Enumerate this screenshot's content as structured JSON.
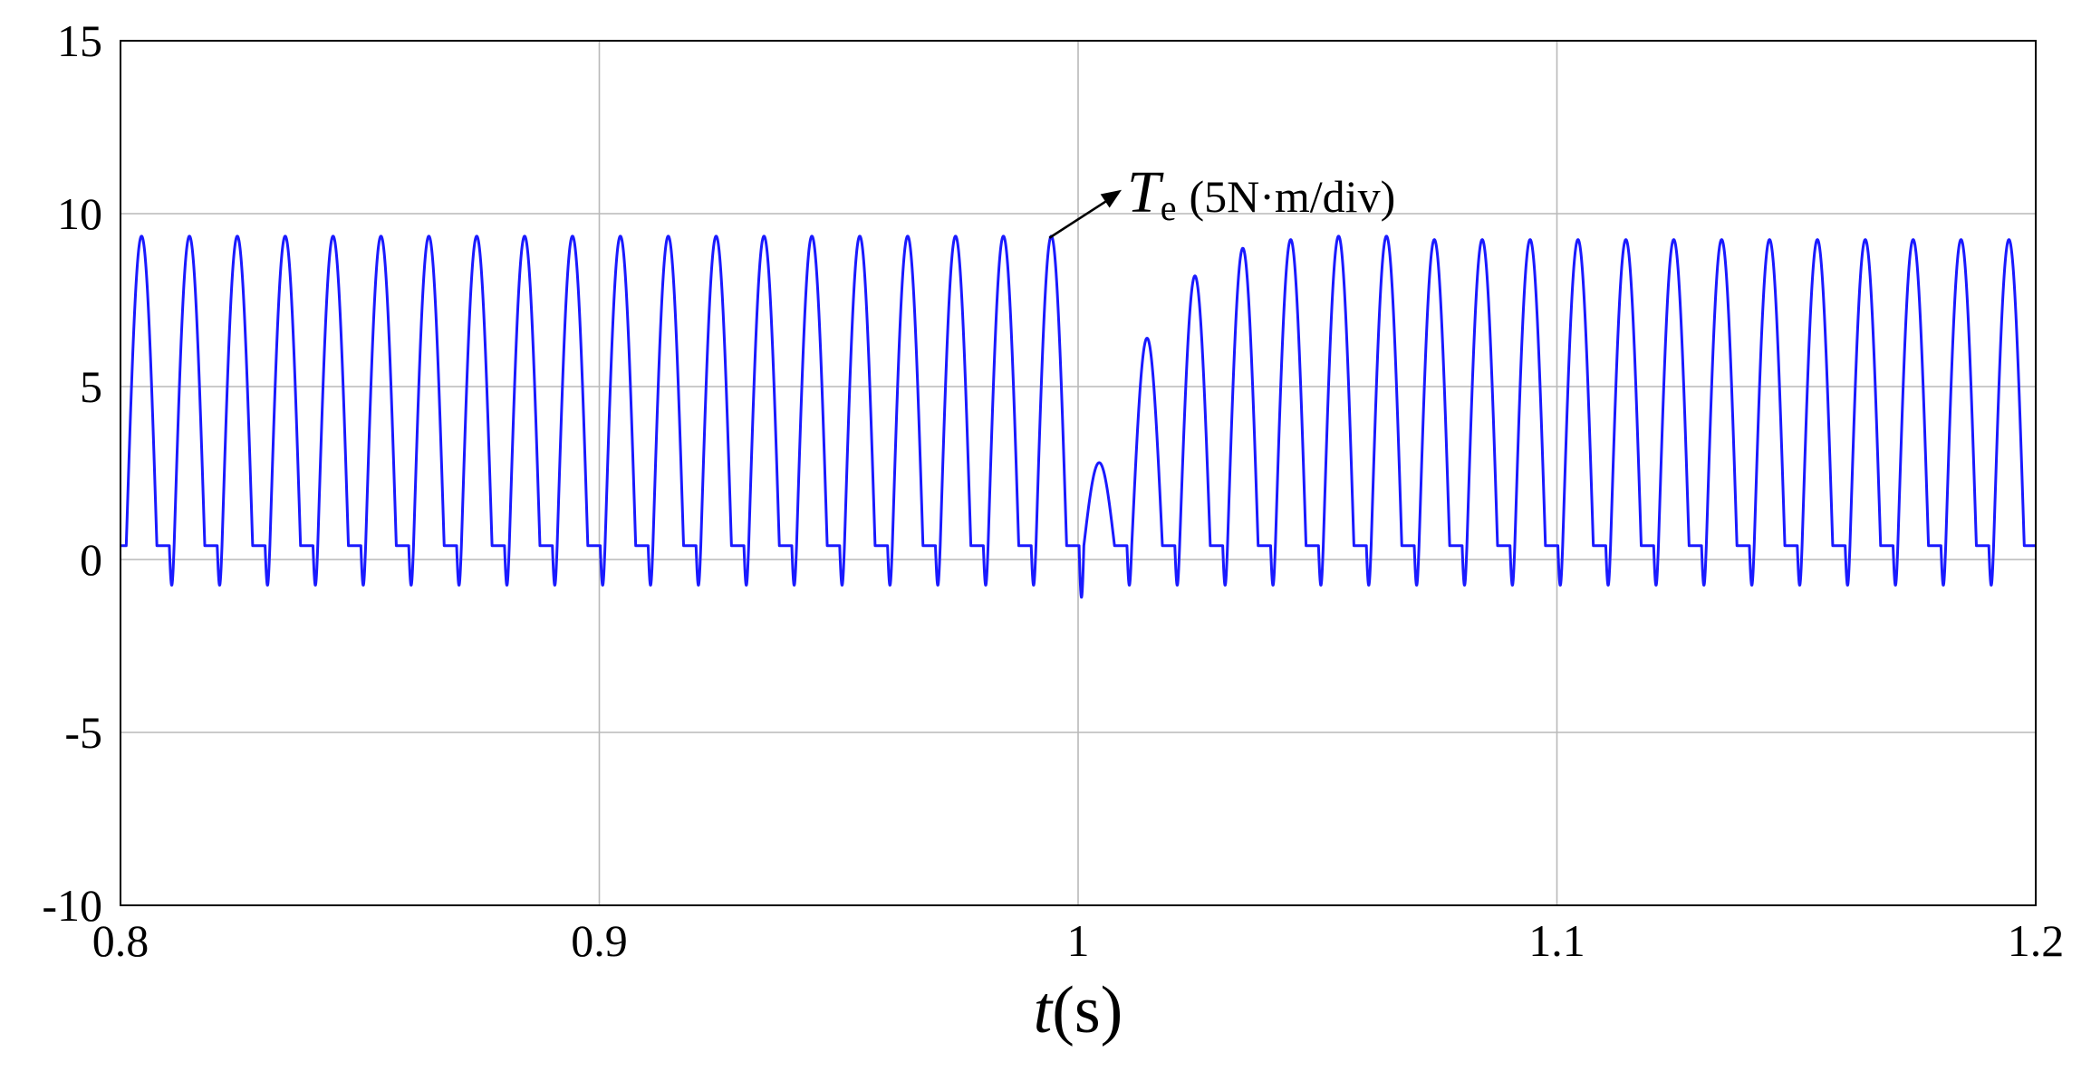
{
  "chart_data": {
    "type": "line",
    "title": "",
    "xlabel": {
      "symbol": "t",
      "unit": "(s)"
    },
    "ylabel": "",
    "xlim": [
      0.8,
      1.2
    ],
    "ylim": [
      -10,
      15
    ],
    "xticks": [
      0.8,
      0.9,
      1.0,
      1.1,
      1.2
    ],
    "xtick_labels": [
      "0.8",
      "0.9",
      "1",
      "1.1",
      "1.2"
    ],
    "yticks": [
      -10,
      -5,
      0,
      5,
      10,
      15
    ],
    "ytick_labels": [
      "-10",
      "-5",
      "0",
      "5",
      "10",
      "15"
    ],
    "grid": true,
    "legend": "none",
    "annotation": {
      "symbol": "T",
      "subscript": "e",
      "text": "(5N·m/div)",
      "arrow_tip": [
        0.994,
        9.3
      ],
      "text_anchor": [
        1.0,
        11.0
      ]
    },
    "series": [
      {
        "color": "#1a1aff",
        "waveform": "periodic half-wave torque pulses (sine lobes with small negative dip)",
        "period": 0.01,
        "first_peak_x": 0.8045,
        "segments": [
          {
            "x_range": [
              0.8,
              1.0
            ],
            "peak": 9.35,
            "dip": -0.75,
            "plateau": 0.4
          },
          {
            "x_range": [
              1.0,
              1.2
            ],
            "peak": 9.25,
            "dip": -0.75,
            "plateau": 0.4
          }
        ],
        "transient_peaks": [
          {
            "x": 1.0055,
            "y": 2.8
          },
          {
            "x": 1.0155,
            "y": 6.4
          },
          {
            "x": 1.0255,
            "y": 8.2
          },
          {
            "x": 1.0355,
            "y": 9.0
          },
          {
            "x": 1.0455,
            "y": 9.25
          },
          {
            "x": 1.0555,
            "y": 9.35
          },
          {
            "x": 1.0655,
            "y": 9.35
          }
        ],
        "transient_dip": {
          "x": 1.002,
          "y": -1.1
        }
      }
    ]
  },
  "colors": {
    "trace": "#1a1aff",
    "grid": "#b9b9b9",
    "frame": "#000000"
  }
}
